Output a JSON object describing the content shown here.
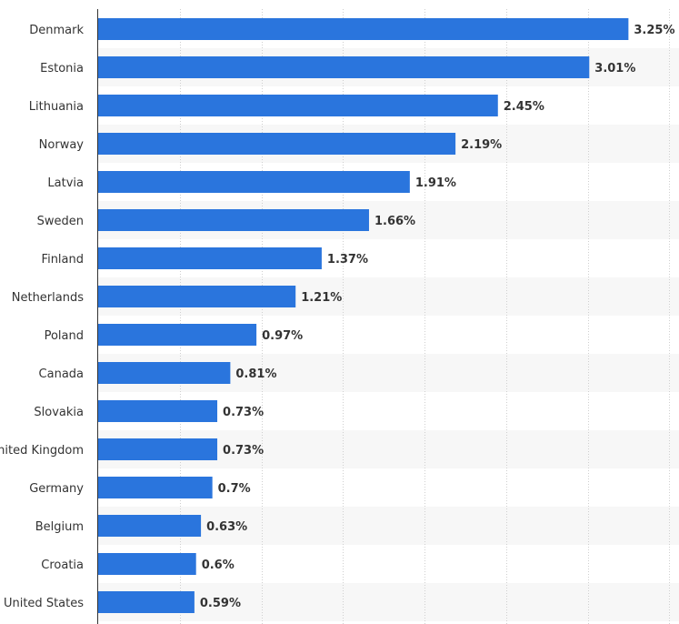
{
  "chart_data": {
    "type": "bar",
    "orientation": "horizontal",
    "categories": [
      "Denmark",
      "Estonia",
      "Lithuania",
      "Norway",
      "Latvia",
      "Sweden",
      "Finland",
      "Netherlands",
      "Poland",
      "Canada",
      "Slovakia",
      "United Kingdom",
      "Germany",
      "Belgium",
      "Croatia",
      "United States"
    ],
    "values": [
      3.25,
      3.01,
      2.45,
      2.19,
      1.91,
      1.66,
      1.37,
      1.21,
      0.97,
      0.81,
      0.73,
      0.73,
      0.7,
      0.63,
      0.6,
      0.59
    ],
    "value_labels": [
      "3.25%",
      "3.01%",
      "2.45%",
      "2.19%",
      "1.91%",
      "1.66%",
      "1.37%",
      "1.21%",
      "0.97%",
      "0.81%",
      "0.73%",
      "0.73%",
      "0.7%",
      "0.63%",
      "0.6%",
      "0.59%"
    ],
    "xlim": [
      0,
      3.5
    ],
    "grid_step": 0.5,
    "grid": true,
    "bar_color": "#2a75dd",
    "band_color": "#f7f7f7",
    "label_color": "#333333",
    "title": "",
    "xlabel": "",
    "ylabel": ""
  }
}
